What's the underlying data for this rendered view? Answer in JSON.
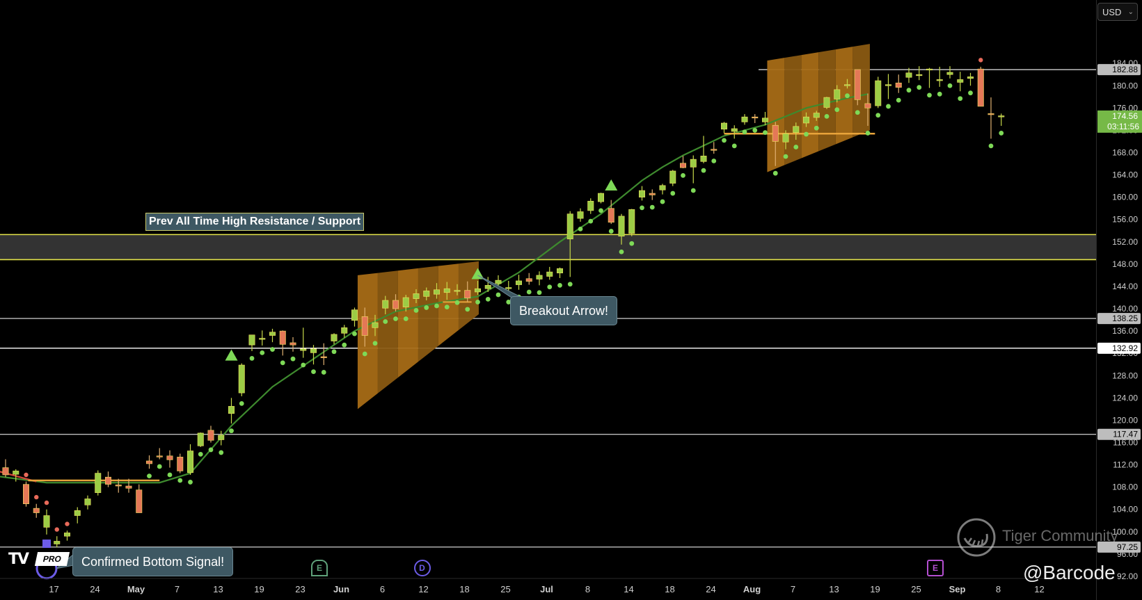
{
  "toolbar": {
    "currency": "USD"
  },
  "chart_data": {
    "type": "candlestick",
    "title": "",
    "y_axis": {
      "range": [
        90,
        194
      ],
      "ticks": [
        92,
        96,
        100,
        104,
        108,
        112,
        116,
        120,
        124,
        128,
        132,
        136,
        140,
        144,
        148,
        152,
        156,
        160,
        164,
        168,
        172,
        176,
        180,
        184
      ]
    },
    "x_axis": {
      "ticks": [
        {
          "label": "17",
          "i": 2
        },
        {
          "label": "24",
          "i": 6
        },
        {
          "label": "May",
          "i": 10
        },
        {
          "label": "7",
          "i": 14
        },
        {
          "label": "13",
          "i": 18
        },
        {
          "label": "19",
          "i": 22
        },
        {
          "label": "23",
          "i": 26
        },
        {
          "label": "Jun",
          "i": 30
        },
        {
          "label": "6",
          "i": 34
        },
        {
          "label": "12",
          "i": 38
        },
        {
          "label": "18",
          "i": 42
        },
        {
          "label": "25",
          "i": 46
        },
        {
          "label": "Jul",
          "i": 50
        },
        {
          "label": "8",
          "i": 54
        },
        {
          "label": "14",
          "i": 58
        },
        {
          "label": "18",
          "i": 62
        },
        {
          "label": "24",
          "i": 66
        },
        {
          "label": "Aug",
          "i": 70
        },
        {
          "label": "7",
          "i": 74
        },
        {
          "label": "13",
          "i": 78
        },
        {
          "label": "19",
          "i": 82
        },
        {
          "label": "25",
          "i": 86
        },
        {
          "label": "Sep",
          "i": 90
        },
        {
          "label": "8",
          "i": 94
        },
        {
          "label": "12",
          "i": 98
        }
      ]
    },
    "candles": [
      [
        111.5,
        113.0,
        109.8,
        110.2
      ],
      [
        110.3,
        111.2,
        109.0,
        110.9
      ],
      [
        108.5,
        109.0,
        104.5,
        105.0
      ],
      [
        104.2,
        105.0,
        102.5,
        103.4
      ],
      [
        100.8,
        104.0,
        99.5,
        102.9
      ],
      [
        97.8,
        99.2,
        97.2,
        98.3
      ],
      [
        99.2,
        100.2,
        98.4,
        99.8
      ],
      [
        102.9,
        104.4,
        101.5,
        103.8
      ],
      [
        104.8,
        106.5,
        104.0,
        105.9
      ],
      [
        107.0,
        111.0,
        106.5,
        110.5
      ],
      [
        109.8,
        110.8,
        108.0,
        108.5
      ],
      [
        108.4,
        109.5,
        107.0,
        108.3
      ],
      [
        108.2,
        109.5,
        107.0,
        107.8
      ],
      [
        107.5,
        108.5,
        103.5,
        103.4
      ],
      [
        112.7,
        113.7,
        111.3,
        112.2
      ],
      [
        113.6,
        115.0,
        113.0,
        113.5
      ],
      [
        113.6,
        114.6,
        111.5,
        112.9
      ],
      [
        113.4,
        114.0,
        110.5,
        110.9
      ],
      [
        110.6,
        115.7,
        110.2,
        114.5
      ],
      [
        115.4,
        117.8,
        115.2,
        117.7
      ],
      [
        118.2,
        119.0,
        116.0,
        116.4
      ],
      [
        116.5,
        118.1,
        115.5,
        117.3
      ],
      [
        121.2,
        124.0,
        119.4,
        122.5
      ],
      [
        124.9,
        130.2,
        124.3,
        129.9
      ],
      [
        133.5,
        135.2,
        132.4,
        135.3
      ],
      [
        134.5,
        136.1,
        133.4,
        134.7
      ],
      [
        135.2,
        136.4,
        134.0,
        135.8
      ],
      [
        136.0,
        136.1,
        131.6,
        133.6
      ],
      [
        133.9,
        134.9,
        132.3,
        133.5
      ],
      [
        132.5,
        136.6,
        131.2,
        132.8
      ],
      [
        132.1,
        133.5,
        130.0,
        132.8
      ],
      [
        131.4,
        133.8,
        129.9,
        131.3
      ],
      [
        134.2,
        135.6,
        133.6,
        135.4
      ],
      [
        135.6,
        137.1,
        134.8,
        136.6
      ],
      [
        137.9,
        140.2,
        136.8,
        139.8
      ],
      [
        138.6,
        140.2,
        133.2,
        135.2
      ],
      [
        136.6,
        138.9,
        135.1,
        137.5
      ],
      [
        140.1,
        142.3,
        139.0,
        141.5
      ],
      [
        141.5,
        142.6,
        139.5,
        140.0
      ],
      [
        140.3,
        142.5,
        139.5,
        142.0
      ],
      [
        141.8,
        143.5,
        141.0,
        142.7
      ],
      [
        142.2,
        143.8,
        141.5,
        143.2
      ],
      [
        142.6,
        144.6,
        141.8,
        143.4
      ],
      [
        142.9,
        144.8,
        141.6,
        143.6
      ],
      [
        143.2,
        144.4,
        142.4,
        143.3
      ],
      [
        143.3,
        144.9,
        141.2,
        141.9
      ],
      [
        143.0,
        145.0,
        142.5,
        143.6
      ],
      [
        143.6,
        145.7,
        143.0,
        144.2
      ],
      [
        144.5,
        146.0,
        143.8,
        145.1
      ],
      [
        143.6,
        145.0,
        142.5,
        143.8
      ],
      [
        144.3,
        146.1,
        143.4,
        145.0
      ],
      [
        145.4,
        146.4,
        144.3,
        144.9
      ],
      [
        145.3,
        146.7,
        144.2,
        146.0
      ],
      [
        145.8,
        147.5,
        145.2,
        146.6
      ],
      [
        146.4,
        147.4,
        145.5,
        147.2
      ],
      [
        152.5,
        157.5,
        145.7,
        157.0
      ],
      [
        156.2,
        158.0,
        155.6,
        157.4
      ],
      [
        157.6,
        159.8,
        157.0,
        159.3
      ],
      [
        159.2,
        160.8,
        158.9,
        160.7
      ],
      [
        158.0,
        159.5,
        155.2,
        155.5
      ],
      [
        153.0,
        157.0,
        151.5,
        156.6
      ],
      [
        153.5,
        157.9,
        153.0,
        157.8
      ],
      [
        160.0,
        162.0,
        159.4,
        161.2
      ],
      [
        160.7,
        161.4,
        159.5,
        160.4
      ],
      [
        161.3,
        162.4,
        160.5,
        162.1
      ],
      [
        162.5,
        164.9,
        162.0,
        164.7
      ],
      [
        166.1,
        167.4,
        165.2,
        165.3
      ],
      [
        165.4,
        167.5,
        162.5,
        166.8
      ],
      [
        166.4,
        171.0,
        166.1,
        167.4
      ],
      [
        168.6,
        169.9,
        167.8,
        168.4
      ],
      [
        172.2,
        173.5,
        171.5,
        173.3
      ],
      [
        171.8,
        172.9,
        170.5,
        172.3
      ],
      [
        173.5,
        174.9,
        173.0,
        174.4
      ],
      [
        174.4,
        174.9,
        173.3,
        174.2
      ],
      [
        173.5,
        175.3,
        172.9,
        174.2
      ],
      [
        172.9,
        173.5,
        165.6,
        170.0
      ],
      [
        169.9,
        172.0,
        168.6,
        171.4
      ],
      [
        171.6,
        173.4,
        170.3,
        172.7
      ],
      [
        173.3,
        175.2,
        172.6,
        174.4
      ],
      [
        174.3,
        175.5,
        173.7,
        175.1
      ],
      [
        176.1,
        178.0,
        175.8,
        177.9
      ],
      [
        177.6,
        180.1,
        177.0,
        179.3
      ],
      [
        180.2,
        181.2,
        179.5,
        180.2
      ],
      [
        182.9,
        182.9,
        176.5,
        177.5
      ],
      [
        176.8,
        178.6,
        172.8,
        176.0
      ],
      [
        176.4,
        181.6,
        176.0,
        180.9
      ],
      [
        180.1,
        182.1,
        177.6,
        180.2
      ],
      [
        180.5,
        182.0,
        178.7,
        179.7
      ],
      [
        181.5,
        183.2,
        180.5,
        182.3
      ],
      [
        182.0,
        183.5,
        181.0,
        182.0
      ],
      [
        183.0,
        183.2,
        179.6,
        183.0
      ],
      [
        181.1,
        183.4,
        179.8,
        181.1
      ],
      [
        182.0,
        183.5,
        181.3,
        182.4
      ],
      [
        180.6,
        182.5,
        179.0,
        181.1
      ],
      [
        181.3,
        182.3,
        180.0,
        181.6
      ],
      [
        183.0,
        183.4,
        176.9,
        176.3
      ],
      [
        175.0,
        177.9,
        170.5,
        174.8
      ],
      [
        174.5,
        175.0,
        172.8,
        174.6
      ]
    ],
    "horizontal_levels": [
      {
        "price": 182.88,
        "label": "182.88",
        "color": "#d0d0d0"
      },
      {
        "price": 138.25,
        "label": "138.25",
        "color": "#bdbdbd"
      },
      {
        "price": 132.92,
        "label": "132.92",
        "color": "#ffffff"
      },
      {
        "price": 117.47,
        "label": "117.47",
        "color": "#bdbdbd"
      },
      {
        "price": 97.25,
        "label": "97.25",
        "color": "#bdbdbd"
      }
    ],
    "current_price": {
      "value": "174.56",
      "countdown": "03:11:56",
      "color": "#76b947"
    },
    "resistance_zone": {
      "top": 153.3,
      "bottom": 148.8,
      "label": "Prev All Time High Resistance / Support",
      "color": "#e5e54a"
    },
    "annotations": [
      {
        "text": "Breakout Arrow!",
        "anchor_i": 46
      },
      {
        "text": "Confirmed Bottom Signal!",
        "anchor_i": 5
      }
    ],
    "events": [
      {
        "letter": "E",
        "i": 28,
        "color": "#5fa17a"
      },
      {
        "letter": "D",
        "i": 38,
        "color": "#6c5ce7"
      },
      {
        "letter": "E",
        "i": 88,
        "color": "#b44fd1"
      }
    ]
  },
  "watermarks": {
    "brand": "Tiger Community",
    "author": "@Barcode",
    "logo_badge": "PRO"
  }
}
